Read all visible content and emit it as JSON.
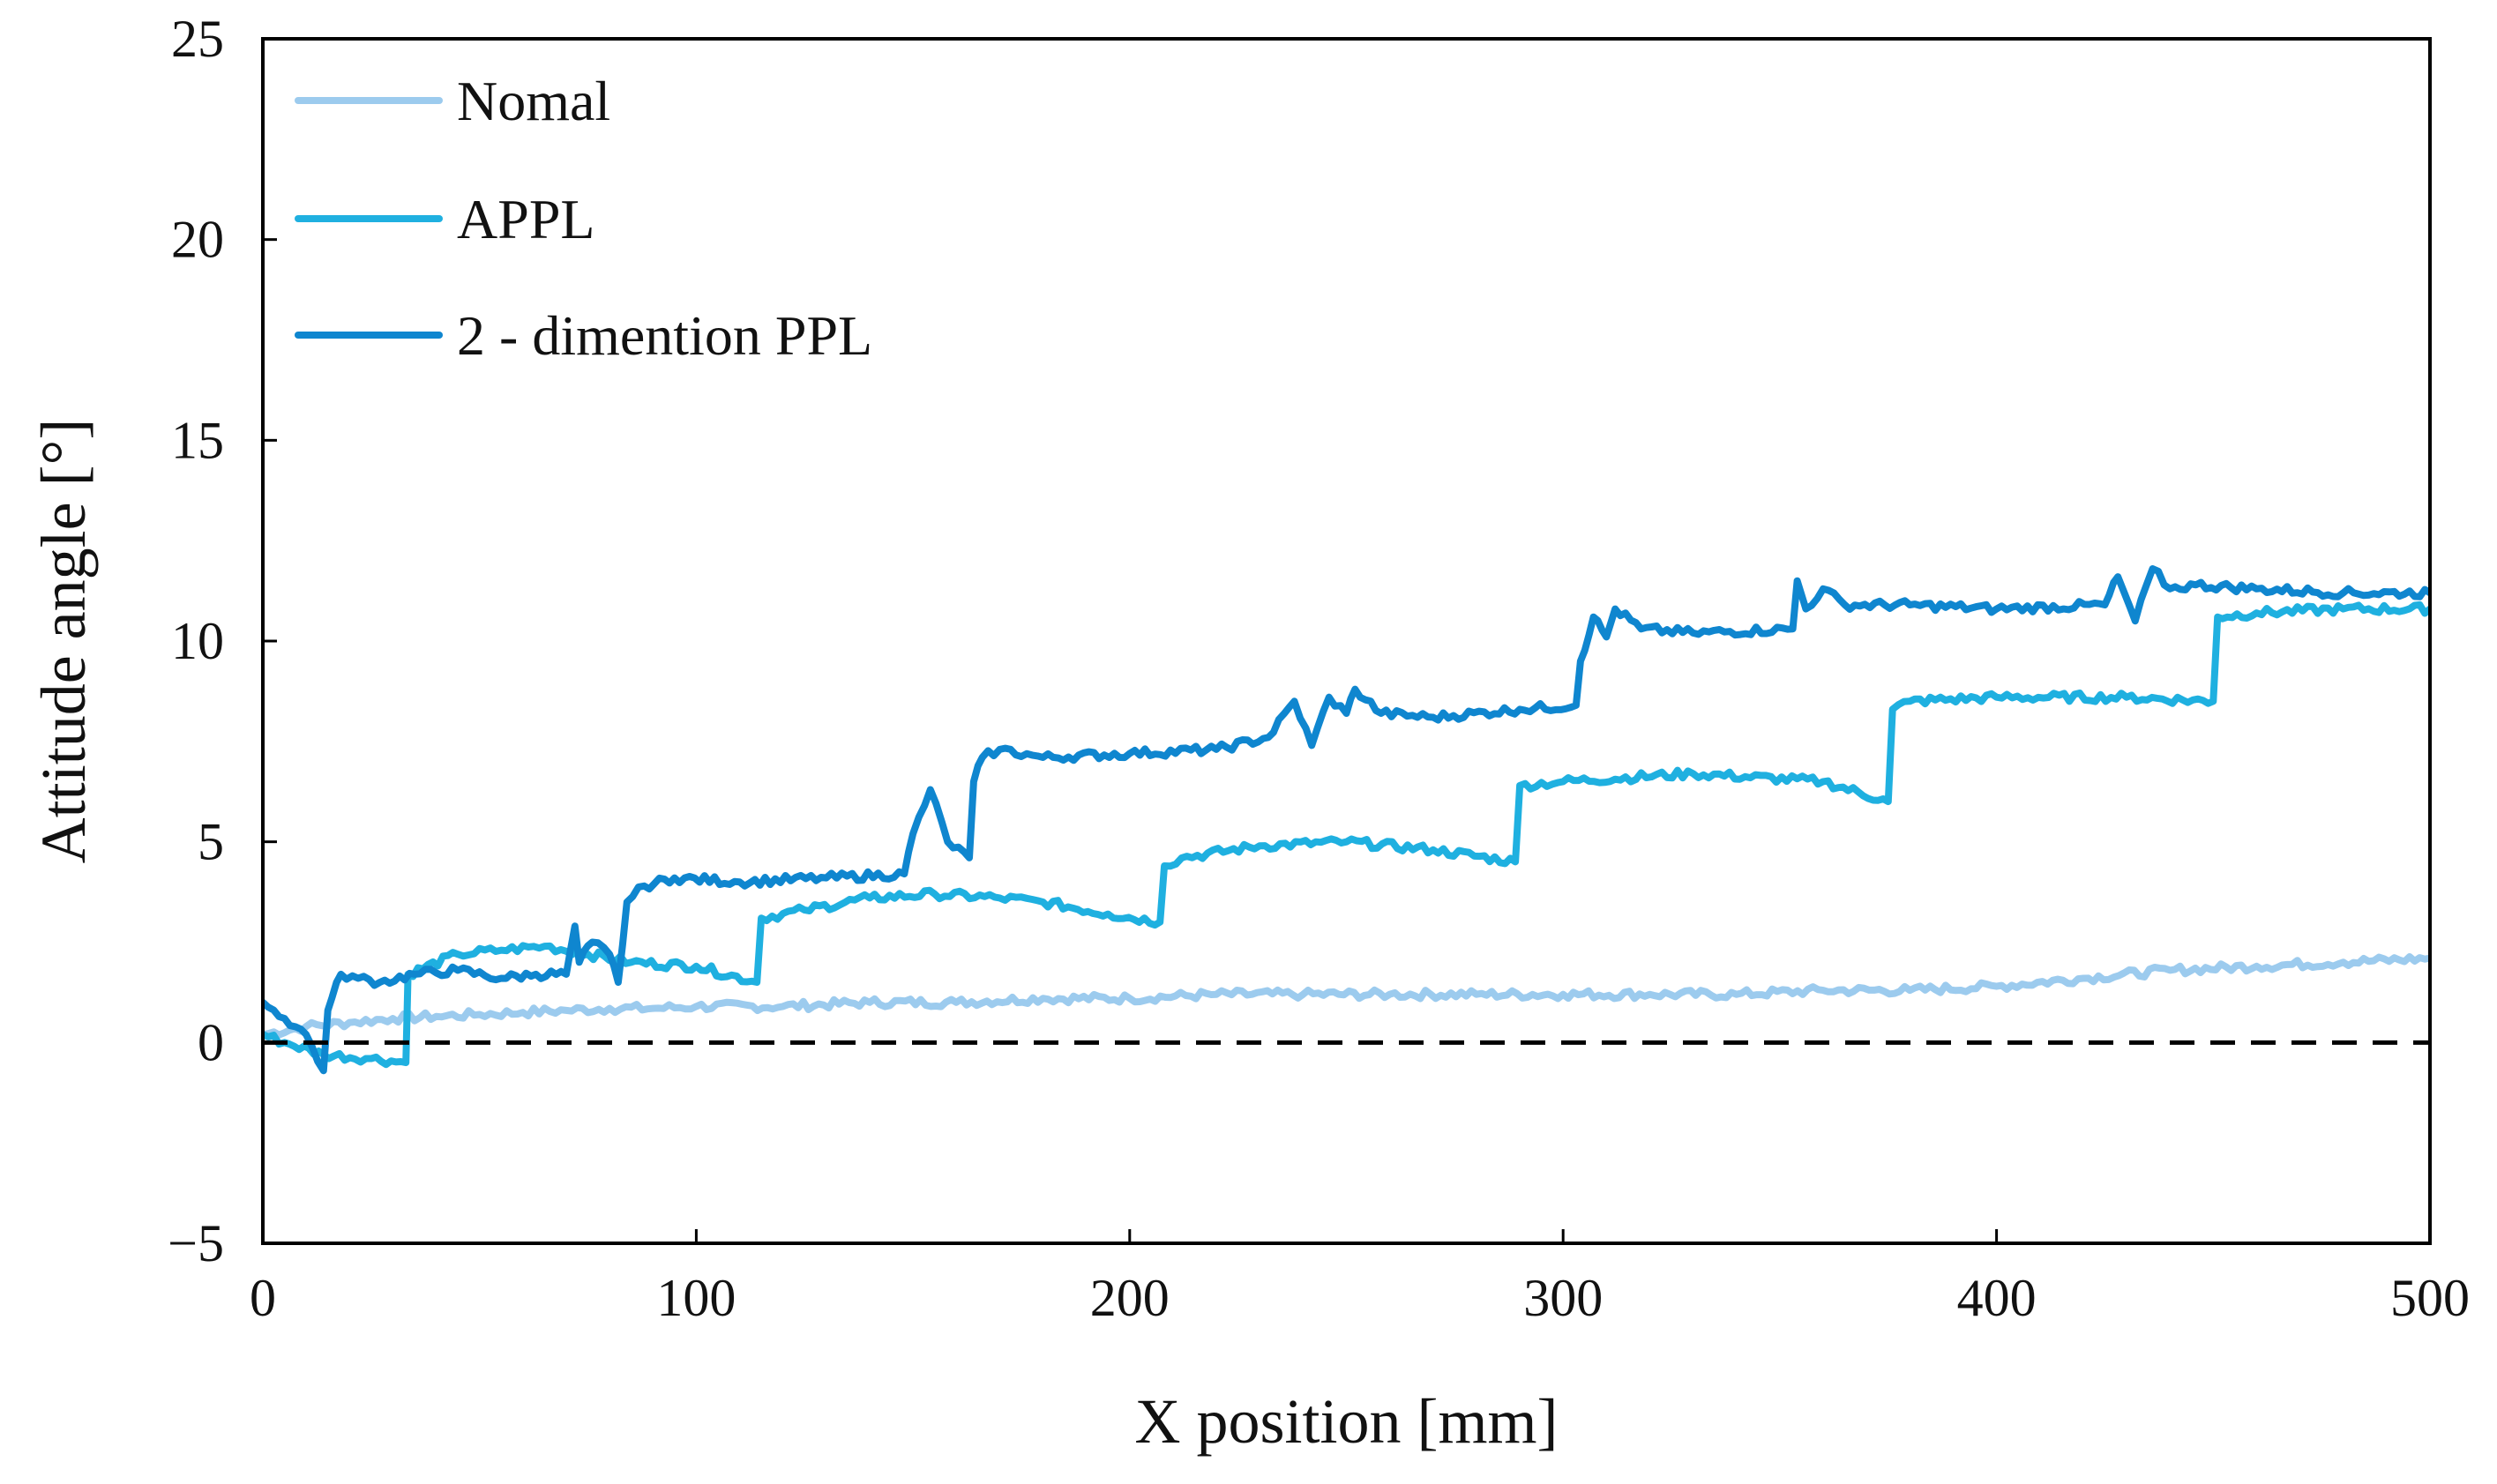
{
  "chart_data": {
    "type": "line",
    "title": "",
    "xlabel": "X position [mm]",
    "ylabel": "Attitude angle [°]",
    "xlim": [
      0,
      500
    ],
    "ylim": [
      -5,
      25
    ],
    "xticks": [
      0,
      100,
      200,
      300,
      400,
      500
    ],
    "yticks": [
      -5,
      0,
      5,
      10,
      15,
      20,
      25
    ],
    "xtick_labels": [
      "0",
      "100",
      "200",
      "300",
      "400",
      "500"
    ],
    "ytick_labels": [
      "−5",
      "0",
      "5",
      "10",
      "15",
      "20",
      "25"
    ],
    "grid": false,
    "legend_position": "top-left",
    "reference_line": {
      "y": 0,
      "style": "dashed",
      "color": "#000000"
    },
    "series": [
      {
        "name": "Nomal",
        "color": "#9ccbee",
        "x": [
          0,
          10,
          20,
          30,
          40,
          50,
          60,
          70,
          80,
          90,
          100,
          120,
          140,
          160,
          180,
          200,
          220,
          240,
          260,
          280,
          300,
          320,
          340,
          360,
          380,
          400,
          420,
          440,
          460,
          480,
          500
        ],
        "y": [
          0.2,
          0.4,
          0.5,
          0.6,
          0.65,
          0.7,
          0.75,
          0.8,
          0.85,
          0.85,
          0.9,
          0.9,
          1.0,
          1.0,
          1.1,
          1.1,
          1.2,
          1.2,
          1.2,
          1.2,
          1.2,
          1.2,
          1.2,
          1.3,
          1.3,
          1.4,
          1.6,
          1.8,
          1.9,
          2.0,
          2.1
        ]
      },
      {
        "name": "APPL",
        "color": "#1fb0e0",
        "x": [
          0,
          5,
          14,
          25,
          33,
          33.5,
          45,
          55,
          65,
          75,
          85,
          100,
          114,
          115,
          125,
          140,
          155,
          170,
          180,
          195,
          207,
          208,
          212,
          230,
          250,
          270,
          289,
          290,
          300,
          330,
          360,
          375,
          376,
          380,
          400,
          430,
          450,
          451,
          460,
          480,
          500
        ],
        "y": [
          0.2,
          0,
          -0.3,
          -0.4,
          -0.5,
          1.7,
          2.2,
          2.3,
          2.4,
          2.2,
          2.0,
          1.9,
          1.5,
          3.1,
          3.3,
          3.6,
          3.7,
          3.6,
          3.5,
          3.2,
          3.0,
          4.4,
          4.6,
          4.9,
          5.0,
          4.8,
          4.5,
          6.4,
          6.5,
          6.7,
          6.5,
          6.0,
          8.3,
          8.5,
          8.6,
          8.6,
          8.5,
          10.6,
          10.7,
          10.8,
          10.8
        ]
      },
      {
        "name": "2 - dimention PPL",
        "color": "#0f86cf",
        "x": [
          0,
          5,
          10,
          14,
          15,
          18,
          22,
          27,
          35,
          45,
          55,
          63,
          70,
          72,
          73,
          76,
          80,
          82,
          84,
          88,
          95,
          110,
          130,
          148,
          150,
          154,
          158,
          163,
          164,
          166,
          170,
          180,
          200,
          220,
          232,
          238,
          242,
          246,
          250,
          252,
          258,
          270,
          290,
          303,
          304,
          307,
          310,
          312,
          318,
          330,
          353,
          354,
          356,
          360,
          365,
          380,
          400,
          425,
          428,
          432,
          436,
          440,
          446,
          460,
          480,
          500
        ],
        "y": [
          1.0,
          0.6,
          0.2,
          -0.7,
          0.8,
          1.7,
          1.6,
          1.5,
          1.7,
          1.8,
          1.6,
          1.7,
          1.7,
          2.9,
          2.0,
          2.5,
          2.2,
          1.5,
          3.5,
          3.9,
          4.1,
          4.0,
          4.1,
          4.2,
          5.2,
          6.3,
          5.0,
          4.6,
          6.5,
          7.1,
          7.3,
          7.1,
          7.2,
          7.3,
          7.6,
          8.5,
          7.4,
          8.6,
          8.2,
          8.8,
          8.2,
          8.1,
          8.3,
          8.4,
          9.5,
          10.6,
          10.1,
          10.8,
          10.3,
          10.2,
          10.3,
          11.5,
          10.8,
          11.3,
          10.9,
          10.9,
          10.8,
          10.9,
          11.6,
          10.5,
          11.8,
          11.3,
          11.4,
          11.3,
          11.2,
          11.2
        ]
      }
    ]
  }
}
